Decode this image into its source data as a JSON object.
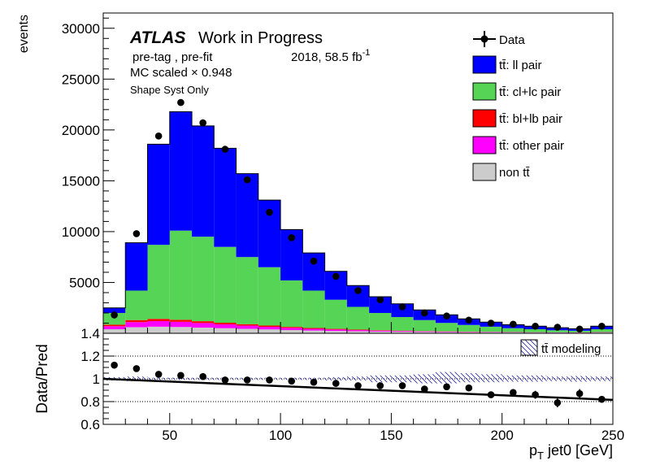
{
  "chart_data": [
    {
      "type": "bar",
      "stacked": true,
      "xlabel_main": "p",
      "xlabel_sub": "T",
      "xlabel_rest": " jet0 [GeV]",
      "ylabel": "events",
      "xlim": [
        20,
        250
      ],
      "ylim": [
        0,
        31500
      ],
      "yticks": [
        5000,
        10000,
        15000,
        20000,
        25000,
        30000
      ],
      "xticks": [
        50,
        100,
        150,
        200,
        250
      ],
      "annotations": {
        "atlas": "ATLAS",
        "atlas_rest": "Work in Progress",
        "pretag": "pre-tag ,  pre-fit",
        "lumi": "2018, 58.5 fb",
        "lumi_sup": "-1",
        "mc_scale": "MC scaled × 0.948",
        "syst": "Shape Syst Only"
      },
      "legend": {
        "placement": "top-right",
        "entries": [
          {
            "key": "data",
            "label": "Data"
          },
          {
            "key": "ll",
            "label": "tt̄: ll pair",
            "color": "#0000ff"
          },
          {
            "key": "cl",
            "label": "tt̄: cl+lc pair",
            "color": "#55d455"
          },
          {
            "key": "bl",
            "label": "tt̄: bl+lb pair",
            "color": "#ff0000"
          },
          {
            "key": "other",
            "label": "tt̄: other pair",
            "color": "#ff00ff"
          },
          {
            "key": "nontt",
            "label": "non tt̄",
            "color": "#cccccc"
          }
        ]
      },
      "bin_edges": [
        20,
        30,
        40,
        50,
        60,
        70,
        80,
        90,
        100,
        110,
        120,
        130,
        140,
        150,
        160,
        170,
        180,
        190,
        200,
        210,
        220,
        230,
        240,
        250
      ],
      "series": [
        {
          "key": "nontt",
          "name": "non tt̄",
          "values": [
            400,
            600,
            650,
            620,
            560,
            500,
            440,
            380,
            320,
            270,
            230,
            200,
            170,
            150,
            130,
            115,
            100,
            90,
            80,
            70,
            60,
            55,
            80
          ]
        },
        {
          "key": "other",
          "name": "tt̄: other pair",
          "values": [
            300,
            500,
            550,
            510,
            450,
            380,
            320,
            260,
            210,
            170,
            140,
            110,
            90,
            75,
            60,
            50,
            42,
            35,
            30,
            25,
            20,
            18,
            25
          ]
        },
        {
          "key": "bl",
          "name": "tt̄: bl+lb pair",
          "values": [
            150,
            200,
            220,
            200,
            180,
            160,
            140,
            120,
            100,
            80,
            65,
            52,
            42,
            35,
            28,
            24,
            20,
            17,
            14,
            12,
            10,
            9,
            12
          ]
        },
        {
          "key": "cl",
          "name": "tt̄: cl+lc pair",
          "values": [
            1150,
            2900,
            7280,
            8770,
            8310,
            7460,
            6600,
            5740,
            4570,
            3680,
            2865,
            2238,
            1698,
            1340,
            1082,
            831,
            658,
            508,
            376,
            293,
            210,
            168,
            283
          ]
        },
        {
          "key": "ll",
          "name": "tt̄: ll pair",
          "values": [
            500,
            4700,
            9900,
            11700,
            10900,
            9700,
            8200,
            6600,
            5000,
            3700,
            2800,
            2100,
            1600,
            1300,
            1000,
            800,
            600,
            450,
            350,
            300,
            250,
            200,
            300
          ]
        }
      ],
      "data": {
        "name": "Data",
        "x": [
          25,
          35,
          45,
          55,
          65,
          75,
          85,
          95,
          105,
          115,
          125,
          135,
          145,
          155,
          165,
          175,
          185,
          195,
          205,
          215,
          225,
          235,
          245
        ],
        "y": [
          1800,
          9800,
          19400,
          22700,
          20700,
          18100,
          15100,
          11900,
          9400,
          7100,
          5600,
          4200,
          3300,
          2600,
          2000,
          1700,
          1300,
          1000,
          900,
          700,
          600,
          420,
          700
        ]
      }
    },
    {
      "type": "scatter",
      "ylabel": "Data/Pred",
      "ylim": [
        0.6,
        1.4
      ],
      "yticks": [
        0.6,
        0.8,
        1,
        1.2,
        1.4
      ],
      "gridlines": [
        0.8,
        1.0,
        1.2
      ],
      "legend": {
        "placement": "top-right",
        "label": "tt̄ modeling"
      },
      "x": [
        25,
        35,
        45,
        55,
        65,
        75,
        85,
        95,
        105,
        115,
        125,
        135,
        145,
        155,
        165,
        175,
        185,
        195,
        205,
        215,
        225,
        235,
        245
      ],
      "y": [
        1.12,
        1.09,
        1.04,
        1.03,
        1.02,
        0.99,
        0.99,
        0.99,
        0.98,
        0.97,
        0.96,
        0.94,
        0.94,
        0.94,
        0.91,
        0.93,
        0.92,
        0.86,
        0.88,
        0.86,
        0.79,
        0.87,
        0.82
      ],
      "yerr": [
        0.02,
        0.01,
        0.01,
        0.01,
        0.01,
        0.01,
        0.01,
        0.01,
        0.01,
        0.01,
        0.01,
        0.01,
        0.01,
        0.01,
        0.015,
        0.02,
        0.02,
        0.025,
        0.03,
        0.035,
        0.04,
        0.04,
        0.03
      ],
      "fit_line": {
        "x": [
          20,
          250
        ],
        "y": [
          1.0,
          0.815
        ]
      },
      "band": {
        "bin_edges": [
          20,
          30,
          40,
          50,
          60,
          70,
          80,
          90,
          100,
          110,
          120,
          130,
          140,
          150,
          160,
          170,
          180,
          190,
          200,
          210,
          220,
          230,
          240,
          250
        ],
        "lo": [
          0.985,
          0.98,
          0.99,
          0.99,
          0.99,
          0.99,
          0.99,
          0.99,
          0.99,
          0.99,
          0.985,
          0.985,
          0.97,
          0.97,
          0.96,
          0.96,
          0.97,
          0.97,
          0.975,
          0.975,
          0.98,
          0.975,
          0.98
        ],
        "hi": [
          1.015,
          1.02,
          1.01,
          1.01,
          1.01,
          1.01,
          1.01,
          1.01,
          1.01,
          1.01,
          1.015,
          1.02,
          1.03,
          1.03,
          1.04,
          1.06,
          1.05,
          1.04,
          1.03,
          1.03,
          1.02,
          1.025,
          1.02
        ]
      }
    }
  ]
}
